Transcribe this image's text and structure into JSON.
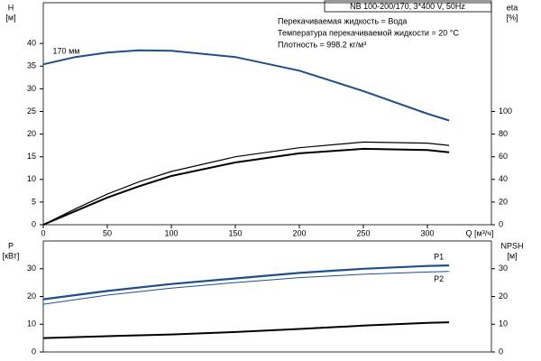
{
  "chart_data": [
    {
      "type": "line",
      "title": "NB 100-200/170, 3*400 V, 50Hz",
      "annotations": [
        "Перекачиваемая жидкость = Вода",
        "Температура перекачиваемой жидкости = 20 °C",
        "Плотность = 998.2 кг/м³"
      ],
      "xlabel": "Q [м³/ч]",
      "ylabel": [
        "H",
        "[м]"
      ],
      "y2label": [
        "eta",
        "[%]"
      ],
      "x": [
        0,
        25,
        50,
        75,
        100,
        150,
        200,
        250,
        300,
        317
      ],
      "xlim": [
        0,
        350
      ],
      "xticks": [
        0,
        50,
        100,
        150,
        200,
        250,
        300
      ],
      "ylim": [
        0,
        49
      ],
      "yticks": [
        0,
        5,
        10,
        15,
        20,
        25,
        30,
        35,
        40
      ],
      "y2lim": [
        0,
        196
      ],
      "y2ticks": [
        0,
        20,
        40,
        60,
        80,
        100
      ],
      "series": [
        {
          "name": "170 мм",
          "color": "#1f4e8c",
          "values": [
            35.4,
            37,
            38,
            38.5,
            38.4,
            37,
            34,
            29.5,
            24.5,
            23
          ]
        },
        {
          "color": "#000000",
          "axis": "y2",
          "values": [
            0,
            14,
            27,
            38,
            47,
            60,
            68,
            73,
            72,
            70
          ]
        },
        {
          "color": "#000000",
          "axis": "y2",
          "values": [
            0,
            12,
            24,
            34,
            43,
            55,
            63,
            67,
            66,
            64
          ]
        }
      ]
    },
    {
      "type": "line",
      "ylabel": [
        "P",
        "[кВт]"
      ],
      "y2label": [
        "NPSH",
        "[м]"
      ],
      "x": [
        0,
        50,
        100,
        150,
        200,
        250,
        300,
        317
      ],
      "xlim": [
        0,
        350
      ],
      "ylim": [
        0,
        40
      ],
      "yticks": [
        0,
        10,
        20,
        30
      ],
      "y2lim": [
        0,
        40
      ],
      "y2ticks": [
        0,
        10,
        20,
        30
      ],
      "series": [
        {
          "name": "P1",
          "color": "#1f4e8c",
          "values": [
            19,
            22,
            24.5,
            26.5,
            28.5,
            30,
            31,
            31.2
          ]
        },
        {
          "name": "P2",
          "color": "#1f4e8c",
          "values": [
            17.2,
            20.5,
            23,
            25,
            26.8,
            28,
            28.8,
            29
          ]
        },
        {
          "color": "#000000",
          "axis": "y2",
          "values": [
            5,
            5.7,
            6.3,
            7.2,
            8.3,
            9.5,
            10.5,
            10.7
          ]
        }
      ]
    }
  ]
}
